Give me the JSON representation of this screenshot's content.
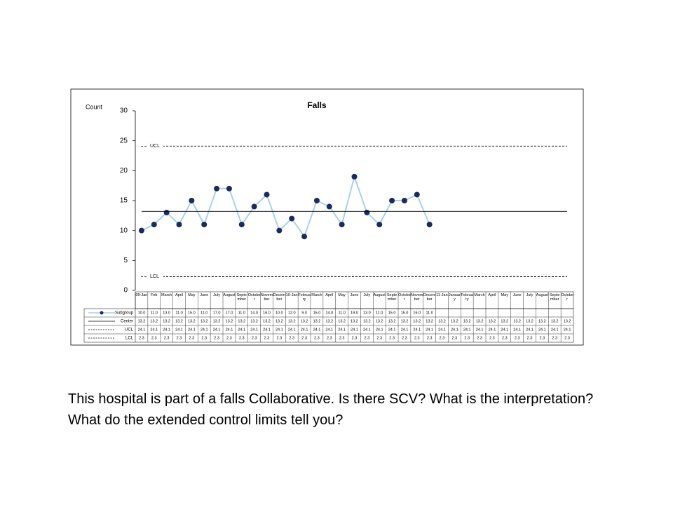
{
  "chart_data": {
    "type": "line",
    "title": "Falls",
    "ylabel": "Count",
    "ylim": [
      0,
      30
    ],
    "yticks": [
      0,
      5,
      10,
      15,
      20,
      25,
      30
    ],
    "annotations": [
      "UCL",
      "LCL"
    ],
    "categories": [
      "09-Jan",
      "Feb",
      "March",
      "April",
      "May",
      "June",
      "July",
      "August",
      "September",
      "October",
      "November",
      "December",
      "10-Jan",
      "February",
      "March",
      "April",
      "May",
      "June",
      "July",
      "August",
      "September",
      "October",
      "November",
      "December",
      "11-Jan",
      "January",
      "February",
      "March",
      "April",
      "May",
      "June",
      "July",
      "August",
      "September",
      "October"
    ],
    "series": [
      {
        "name": "Subgroup",
        "color": "#a9d0ec",
        "marker_color": "#1b2b5e",
        "dash": false,
        "markers": true,
        "values": [
          10.0,
          11.0,
          13.0,
          11.0,
          15.0,
          11.0,
          17.0,
          17.0,
          11.0,
          14.0,
          16.0,
          10.0,
          12.0,
          9.0,
          15.0,
          14.0,
          11.0,
          19.0,
          13.0,
          11.0,
          15.0,
          15.0,
          16.0,
          11.0,
          null,
          null,
          null,
          null,
          null,
          null,
          null,
          null,
          null,
          null,
          null
        ],
        "value_labels": [
          "10.0",
          "11.0",
          "13.0",
          "11.0",
          "15.0",
          "11.0",
          "17.0",
          "17.0",
          "11.0",
          "14.0",
          "16.0",
          "10.0",
          "12.0",
          "9.0",
          "15.0",
          "14.0",
          "11.0",
          "19.0",
          "13.0",
          "11.0",
          "15.0",
          "15.0",
          "16.0",
          "11.0",
          null,
          null,
          null,
          null,
          null,
          null,
          null,
          null,
          null,
          null,
          null
        ]
      },
      {
        "name": "Center",
        "color": "#000000",
        "dash": false,
        "markers": false,
        "values": [
          13.2,
          13.2,
          13.2,
          13.2,
          13.2,
          13.2,
          13.2,
          13.2,
          13.2,
          13.2,
          13.2,
          13.2,
          13.2,
          13.2,
          13.2,
          13.2,
          13.2,
          13.2,
          13.2,
          13.2,
          13.2,
          13.2,
          13.2,
          13.2,
          13.2,
          13.2,
          13.2,
          13.2,
          13.2,
          13.2,
          13.2,
          13.2,
          13.2,
          13.2,
          13.2
        ]
      },
      {
        "name": "UCL",
        "color": "#000000",
        "dash": true,
        "markers": false,
        "values": [
          24.1,
          24.1,
          24.1,
          24.1,
          24.1,
          24.1,
          24.1,
          24.1,
          24.1,
          24.1,
          24.1,
          24.1,
          24.1,
          24.1,
          24.1,
          24.1,
          24.1,
          24.1,
          24.1,
          24.1,
          24.1,
          24.1,
          24.1,
          24.1,
          24.1,
          24.1,
          24.1,
          24.1,
          24.1,
          24.1,
          24.1,
          24.1,
          24.1,
          24.1,
          24.1
        ]
      },
      {
        "name": "LCL",
        "color": "#000000",
        "dash": true,
        "markers": false,
        "values": [
          2.3,
          2.3,
          2.3,
          2.3,
          2.3,
          2.3,
          2.3,
          2.3,
          2.3,
          2.3,
          2.3,
          2.3,
          2.3,
          2.3,
          2.3,
          2.3,
          2.3,
          2.3,
          2.3,
          2.3,
          2.3,
          2.3,
          2.3,
          2.3,
          2.3,
          2.3,
          2.3,
          2.3,
          2.3,
          2.3,
          2.3,
          2.3,
          2.3,
          2.3,
          2.3
        ]
      }
    ]
  },
  "caption": "This hospital is part of a falls Collaborative.  Is there SCV? What is the interpretation? What do the extended control limits tell you?"
}
